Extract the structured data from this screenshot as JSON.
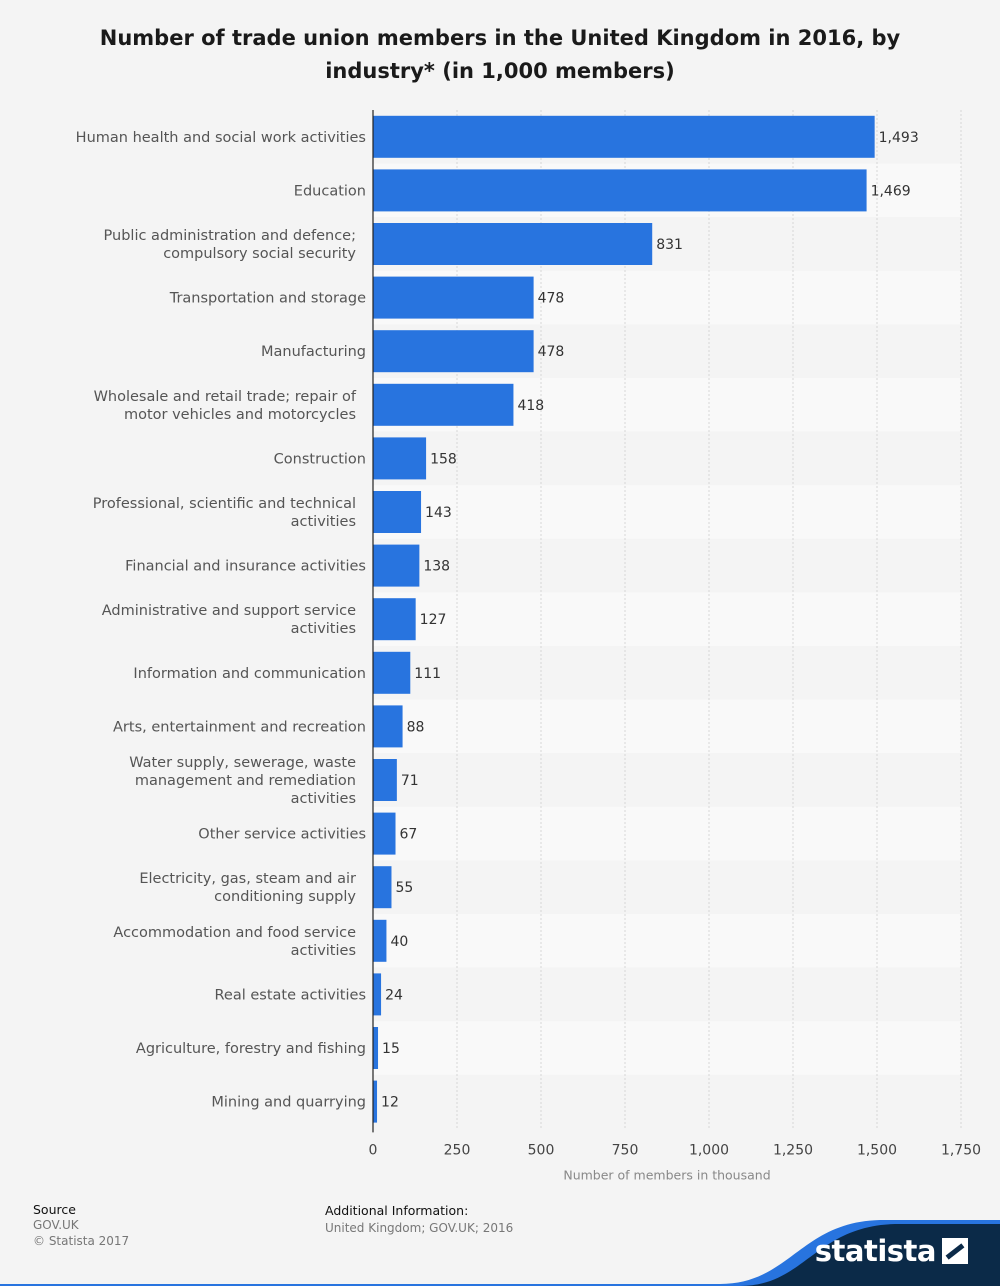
{
  "chart_data": {
    "type": "bar",
    "orientation": "horizontal",
    "title": "Number of trade union members in the United Kingdom in 2016, by industry* (in 1,000 members)",
    "xlabel": "Number of members in thousand",
    "ylabel": "",
    "xlim": [
      0,
      1750
    ],
    "xticks": [
      "0",
      "250",
      "500",
      "750",
      "1,000",
      "1,250",
      "1,500",
      "1,750"
    ],
    "xtick_values": [
      0,
      250,
      500,
      750,
      1000,
      1250,
      1500,
      1750
    ],
    "grid": true,
    "bar_color": "#2874df",
    "categories": [
      "Human health and social work activities",
      "Education",
      "Public administration and defence;\ncompulsory social security",
      "Transportation and storage",
      "Manufacturing",
      "Wholesale and retail trade; repair of\nmotor vehicles and motorcycles",
      "Construction",
      "Professional, scientific and technical\nactivities",
      "Financial and insurance activities",
      "Administrative and support service\nactivities",
      "Information and communication",
      "Arts, entertainment and recreation",
      "Water supply, sewerage, waste\nmanagement and remediation\nactivities",
      "Other service activities",
      "Electricity, gas, steam and air\nconditioning supply",
      "Accommodation and food service\nactivities",
      "Real estate activities",
      "Agriculture, forestry and fishing",
      "Mining and quarrying"
    ],
    "values": [
      1493,
      1469,
      831,
      478,
      478,
      418,
      158,
      143,
      138,
      127,
      111,
      88,
      71,
      67,
      55,
      40,
      24,
      15,
      12
    ],
    "value_labels": [
      "1,493",
      "1,469",
      "831",
      "478",
      "478",
      "418",
      "158",
      "143",
      "138",
      "127",
      "111",
      "88",
      "71",
      "67",
      "55",
      "40",
      "24",
      "15",
      "12"
    ]
  },
  "footer": {
    "source_label": "Source",
    "source_lines": [
      "GOV.UK",
      "© Statista 2017"
    ],
    "info_label": "Additional Information:",
    "info_text": "United Kingdom; GOV.UK; 2016"
  },
  "brand": {
    "name": "statista",
    "dark_color": "#0b2a48",
    "accent_color": "#2874df"
  }
}
